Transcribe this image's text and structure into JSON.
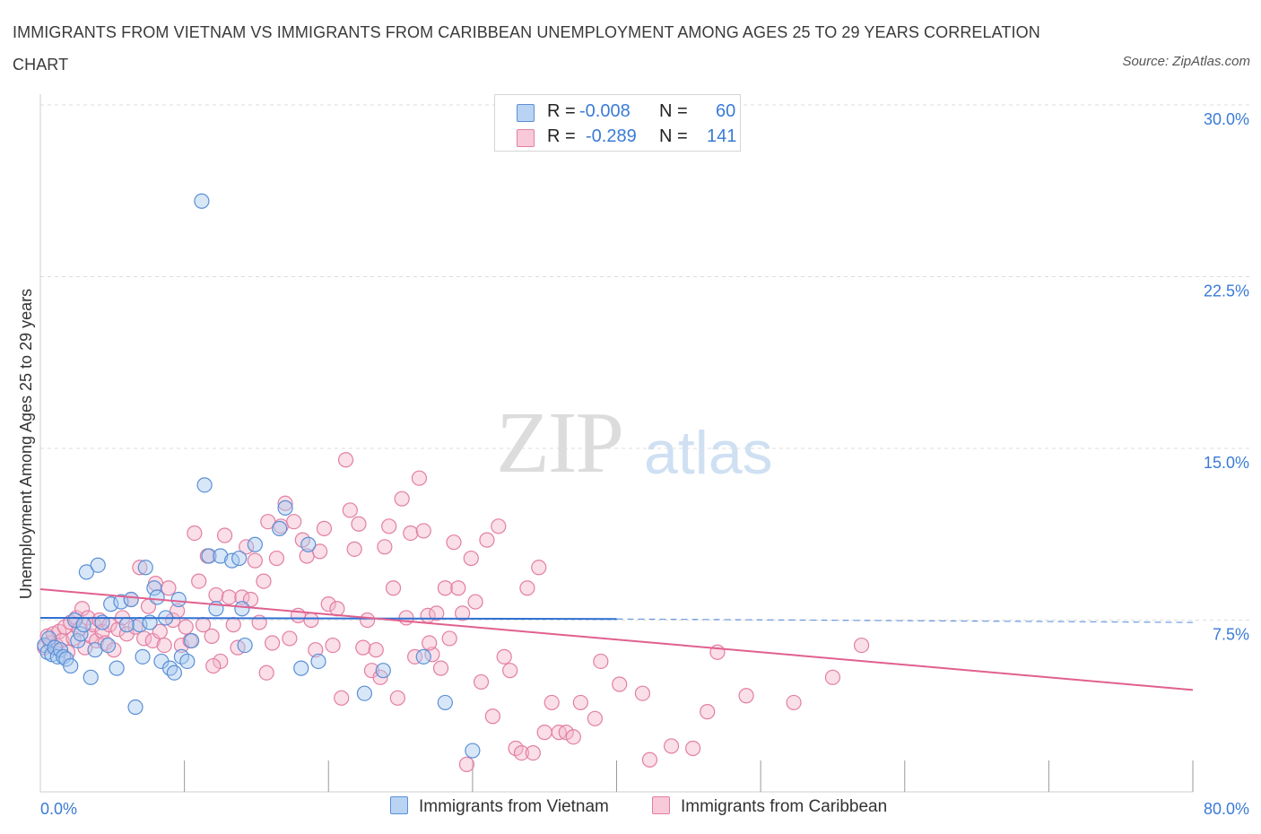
{
  "title": "IMMIGRANTS FROM VIETNAM VS IMMIGRANTS FROM CARIBBEAN UNEMPLOYMENT AMONG AGES 25 TO 29 YEARS CORRELATION CHART",
  "source": "Source: ZipAtlas.com",
  "watermark": {
    "zip": "ZIP",
    "atlas": "atlas"
  },
  "colors": {
    "vietnam_fill": "#a9c9ef",
    "vietnam_stroke": "#5b8fd6",
    "vietnam_line": "#2e6fd1",
    "caribbean_fill": "#f4b6cb",
    "caribbean_stroke": "#e27fa3",
    "caribbean_line": "#e0608f",
    "axis_label": "#3a7bd5",
    "grid": "#dedede"
  },
  "legend": {
    "vietnam": {
      "r_label": "R =",
      "r_value": "-0.008",
      "n_label": "N =",
      "n_value": "60"
    },
    "caribbean": {
      "r_label": "R =",
      "r_value": "-0.289",
      "n_label": "N =",
      "n_value": "141"
    }
  },
  "bottom_legend": {
    "vietnam": "Immigrants from Vietnam",
    "caribbean": "Immigrants from Caribbean"
  },
  "chart_data": {
    "type": "scatter",
    "xlabel": "",
    "ylabel": "Unemployment Among Ages 25 to 29 years",
    "xlim": [
      0,
      80
    ],
    "ylim": [
      0,
      30
    ],
    "x_tick_labels": [
      "0.0%",
      "80.0%"
    ],
    "y_tick_labels": [
      "7.5%",
      "15.0%",
      "22.5%",
      "30.0%"
    ],
    "y_ticks": [
      7.5,
      15.0,
      22.5,
      30.0
    ],
    "grid": true,
    "legend_placement": "top-center",
    "series": [
      {
        "name": "Immigrants from Vietnam",
        "points": [
          [
            0.3,
            6.4
          ],
          [
            0.5,
            6.1
          ],
          [
            0.6,
            6.7
          ],
          [
            0.8,
            6.0
          ],
          [
            1.0,
            6.3
          ],
          [
            1.2,
            5.9
          ],
          [
            1.4,
            6.2
          ],
          [
            1.6,
            5.9
          ],
          [
            1.8,
            5.8
          ],
          [
            2.1,
            5.5
          ],
          [
            2.4,
            7.5
          ],
          [
            2.6,
            6.6
          ],
          [
            2.8,
            6.9
          ],
          [
            3.0,
            7.3
          ],
          [
            3.2,
            9.6
          ],
          [
            3.5,
            5.0
          ],
          [
            3.8,
            6.2
          ],
          [
            4.0,
            9.9
          ],
          [
            4.3,
            7.4
          ],
          [
            4.7,
            6.4
          ],
          [
            4.9,
            8.2
          ],
          [
            5.3,
            5.4
          ],
          [
            5.6,
            8.3
          ],
          [
            6.0,
            7.3
          ],
          [
            6.3,
            8.4
          ],
          [
            6.6,
            3.7
          ],
          [
            6.9,
            7.3
          ],
          [
            7.1,
            5.9
          ],
          [
            7.3,
            9.8
          ],
          [
            7.6,
            7.4
          ],
          [
            7.9,
            8.9
          ],
          [
            8.1,
            8.5
          ],
          [
            8.4,
            5.7
          ],
          [
            8.7,
            7.6
          ],
          [
            9.0,
            5.4
          ],
          [
            9.3,
            5.2
          ],
          [
            9.6,
            8.4
          ],
          [
            9.8,
            5.9
          ],
          [
            10.2,
            5.7
          ],
          [
            10.5,
            6.6
          ],
          [
            11.2,
            25.8
          ],
          [
            11.4,
            13.4
          ],
          [
            11.7,
            10.3
          ],
          [
            12.2,
            8.0
          ],
          [
            12.5,
            10.3
          ],
          [
            13.3,
            10.1
          ],
          [
            13.8,
            10.2
          ],
          [
            14.0,
            8.0
          ],
          [
            14.2,
            6.4
          ],
          [
            14.9,
            10.8
          ],
          [
            16.6,
            11.5
          ],
          [
            17.0,
            12.4
          ],
          [
            18.1,
            5.4
          ],
          [
            18.6,
            10.8
          ],
          [
            19.3,
            5.7
          ],
          [
            22.5,
            4.3
          ],
          [
            23.8,
            5.3
          ],
          [
            26.6,
            5.9
          ],
          [
            28.1,
            3.9
          ],
          [
            30.0,
            1.8
          ]
        ],
        "trend": {
          "x": [
            0,
            40
          ],
          "y": [
            7.6,
            7.55
          ],
          "dashed_to": [
            80,
            7.4
          ]
        }
      },
      {
        "name": "Immigrants from Caribbean",
        "points": [
          [
            0.3,
            6.3
          ],
          [
            0.5,
            6.8
          ],
          [
            0.7,
            6.5
          ],
          [
            0.9,
            6.9
          ],
          [
            1.1,
            6.4
          ],
          [
            1.3,
            7.0
          ],
          [
            1.5,
            6.6
          ],
          [
            1.7,
            7.2
          ],
          [
            1.9,
            6.1
          ],
          [
            2.1,
            7.4
          ],
          [
            2.3,
            6.7
          ],
          [
            2.5,
            7.6
          ],
          [
            2.7,
            7.1
          ],
          [
            2.9,
            8.0
          ],
          [
            3.1,
            6.3
          ],
          [
            3.3,
            7.6
          ],
          [
            3.5,
            6.8
          ],
          [
            3.7,
            7.3
          ],
          [
            3.9,
            6.6
          ],
          [
            4.1,
            7.5
          ],
          [
            4.3,
            7.0
          ],
          [
            4.5,
            6.5
          ],
          [
            4.8,
            7.3
          ],
          [
            5.1,
            6.2
          ],
          [
            5.4,
            7.1
          ],
          [
            5.7,
            7.6
          ],
          [
            6.0,
            6.9
          ],
          [
            6.3,
            8.4
          ],
          [
            6.6,
            7.2
          ],
          [
            6.9,
            9.8
          ],
          [
            7.2,
            6.7
          ],
          [
            7.5,
            8.1
          ],
          [
            7.8,
            6.6
          ],
          [
            8.0,
            9.1
          ],
          [
            8.3,
            7.0
          ],
          [
            8.6,
            6.4
          ],
          [
            8.9,
            8.9
          ],
          [
            9.2,
            7.5
          ],
          [
            9.5,
            7.9
          ],
          [
            9.8,
            6.4
          ],
          [
            10.1,
            7.2
          ],
          [
            10.4,
            6.6
          ],
          [
            10.7,
            11.3
          ],
          [
            11.0,
            9.2
          ],
          [
            11.3,
            7.3
          ],
          [
            11.6,
            10.3
          ],
          [
            11.9,
            6.8
          ],
          [
            12.2,
            8.6
          ],
          [
            12.5,
            5.7
          ],
          [
            12.8,
            11.2
          ],
          [
            13.1,
            8.5
          ],
          [
            13.4,
            7.3
          ],
          [
            13.7,
            6.3
          ],
          [
            14.0,
            8.5
          ],
          [
            14.3,
            10.7
          ],
          [
            14.6,
            8.4
          ],
          [
            14.9,
            10.1
          ],
          [
            15.2,
            7.4
          ],
          [
            15.5,
            9.2
          ],
          [
            15.8,
            11.8
          ],
          [
            16.1,
            6.5
          ],
          [
            16.4,
            10.2
          ],
          [
            16.7,
            11.6
          ],
          [
            17.0,
            12.6
          ],
          [
            17.3,
            6.7
          ],
          [
            17.6,
            11.8
          ],
          [
            17.9,
            7.7
          ],
          [
            18.2,
            11.0
          ],
          [
            18.5,
            10.3
          ],
          [
            18.8,
            7.5
          ],
          [
            19.1,
            6.2
          ],
          [
            19.4,
            10.5
          ],
          [
            19.7,
            11.5
          ],
          [
            20.0,
            8.2
          ],
          [
            20.3,
            6.4
          ],
          [
            20.6,
            8.0
          ],
          [
            20.9,
            4.1
          ],
          [
            21.2,
            14.5
          ],
          [
            21.5,
            12.3
          ],
          [
            21.8,
            10.6
          ],
          [
            22.1,
            11.7
          ],
          [
            22.4,
            6.3
          ],
          [
            22.7,
            7.5
          ],
          [
            23.0,
            5.3
          ],
          [
            23.3,
            6.2
          ],
          [
            23.6,
            5.0
          ],
          [
            23.9,
            10.7
          ],
          [
            24.2,
            11.6
          ],
          [
            24.5,
            8.9
          ],
          [
            24.8,
            4.1
          ],
          [
            25.1,
            12.8
          ],
          [
            25.4,
            7.6
          ],
          [
            25.7,
            11.3
          ],
          [
            26.0,
            5.9
          ],
          [
            26.3,
            13.7
          ],
          [
            26.6,
            11.4
          ],
          [
            26.9,
            7.7
          ],
          [
            27.2,
            6.0
          ],
          [
            27.5,
            7.8
          ],
          [
            27.8,
            5.4
          ],
          [
            28.1,
            8.9
          ],
          [
            28.4,
            6.7
          ],
          [
            28.7,
            10.9
          ],
          [
            29.0,
            8.9
          ],
          [
            29.3,
            7.8
          ],
          [
            29.6,
            1.2
          ],
          [
            29.9,
            10.2
          ],
          [
            30.2,
            8.3
          ],
          [
            30.6,
            4.8
          ],
          [
            31.0,
            11.0
          ],
          [
            31.4,
            3.3
          ],
          [
            31.8,
            11.6
          ],
          [
            32.2,
            5.9
          ],
          [
            32.6,
            5.3
          ],
          [
            33.0,
            1.9
          ],
          [
            33.4,
            1.7
          ],
          [
            33.8,
            8.9
          ],
          [
            34.2,
            1.7
          ],
          [
            34.6,
            9.8
          ],
          [
            35.0,
            2.6
          ],
          [
            35.5,
            3.9
          ],
          [
            36.0,
            2.6
          ],
          [
            36.5,
            2.6
          ],
          [
            37.0,
            2.4
          ],
          [
            37.5,
            3.9
          ],
          [
            38.5,
            3.2
          ],
          [
            38.9,
            5.7
          ],
          [
            40.2,
            4.7
          ],
          [
            41.8,
            4.3
          ],
          [
            42.3,
            1.4
          ],
          [
            43.8,
            2.0
          ],
          [
            45.3,
            1.9
          ],
          [
            46.3,
            3.5
          ],
          [
            47.0,
            6.1
          ],
          [
            49.0,
            4.2
          ],
          [
            52.3,
            3.9
          ],
          [
            55.0,
            5.0
          ],
          [
            57.0,
            6.4
          ],
          [
            27.0,
            6.5
          ],
          [
            15.7,
            5.2
          ],
          [
            12.0,
            5.5
          ]
        ],
        "trend": {
          "x": [
            0,
            80
          ],
          "y": [
            8.85,
            4.45
          ]
        }
      }
    ]
  }
}
